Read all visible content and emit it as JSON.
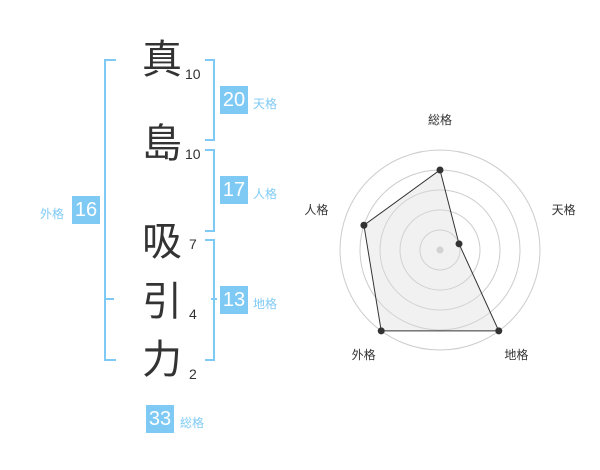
{
  "name_chars": [
    {
      "char": "真",
      "strokes": "10"
    },
    {
      "char": "島",
      "strokes": "10"
    },
    {
      "char": "吸",
      "strokes": "7"
    },
    {
      "char": "引",
      "strokes": "4"
    },
    {
      "char": "力",
      "strokes": "2"
    }
  ],
  "kaku": {
    "tenkaku": {
      "label": "天格",
      "value": "20"
    },
    "jinkaku": {
      "label": "人格",
      "value": "17"
    },
    "chikaku": {
      "label": "地格",
      "value": "13"
    },
    "gaikaku": {
      "label": "外格",
      "value": "16"
    },
    "soukaku": {
      "label": "総格",
      "value": "33"
    }
  },
  "accent_color": "#7fcaf5",
  "chart_data": {
    "type": "radar",
    "axes": [
      "総格",
      "天格",
      "地格",
      "外格",
      "人格"
    ],
    "values": [
      4,
      1,
      5,
      5,
      4
    ],
    "range": [
      0,
      5
    ],
    "rings": 5
  }
}
